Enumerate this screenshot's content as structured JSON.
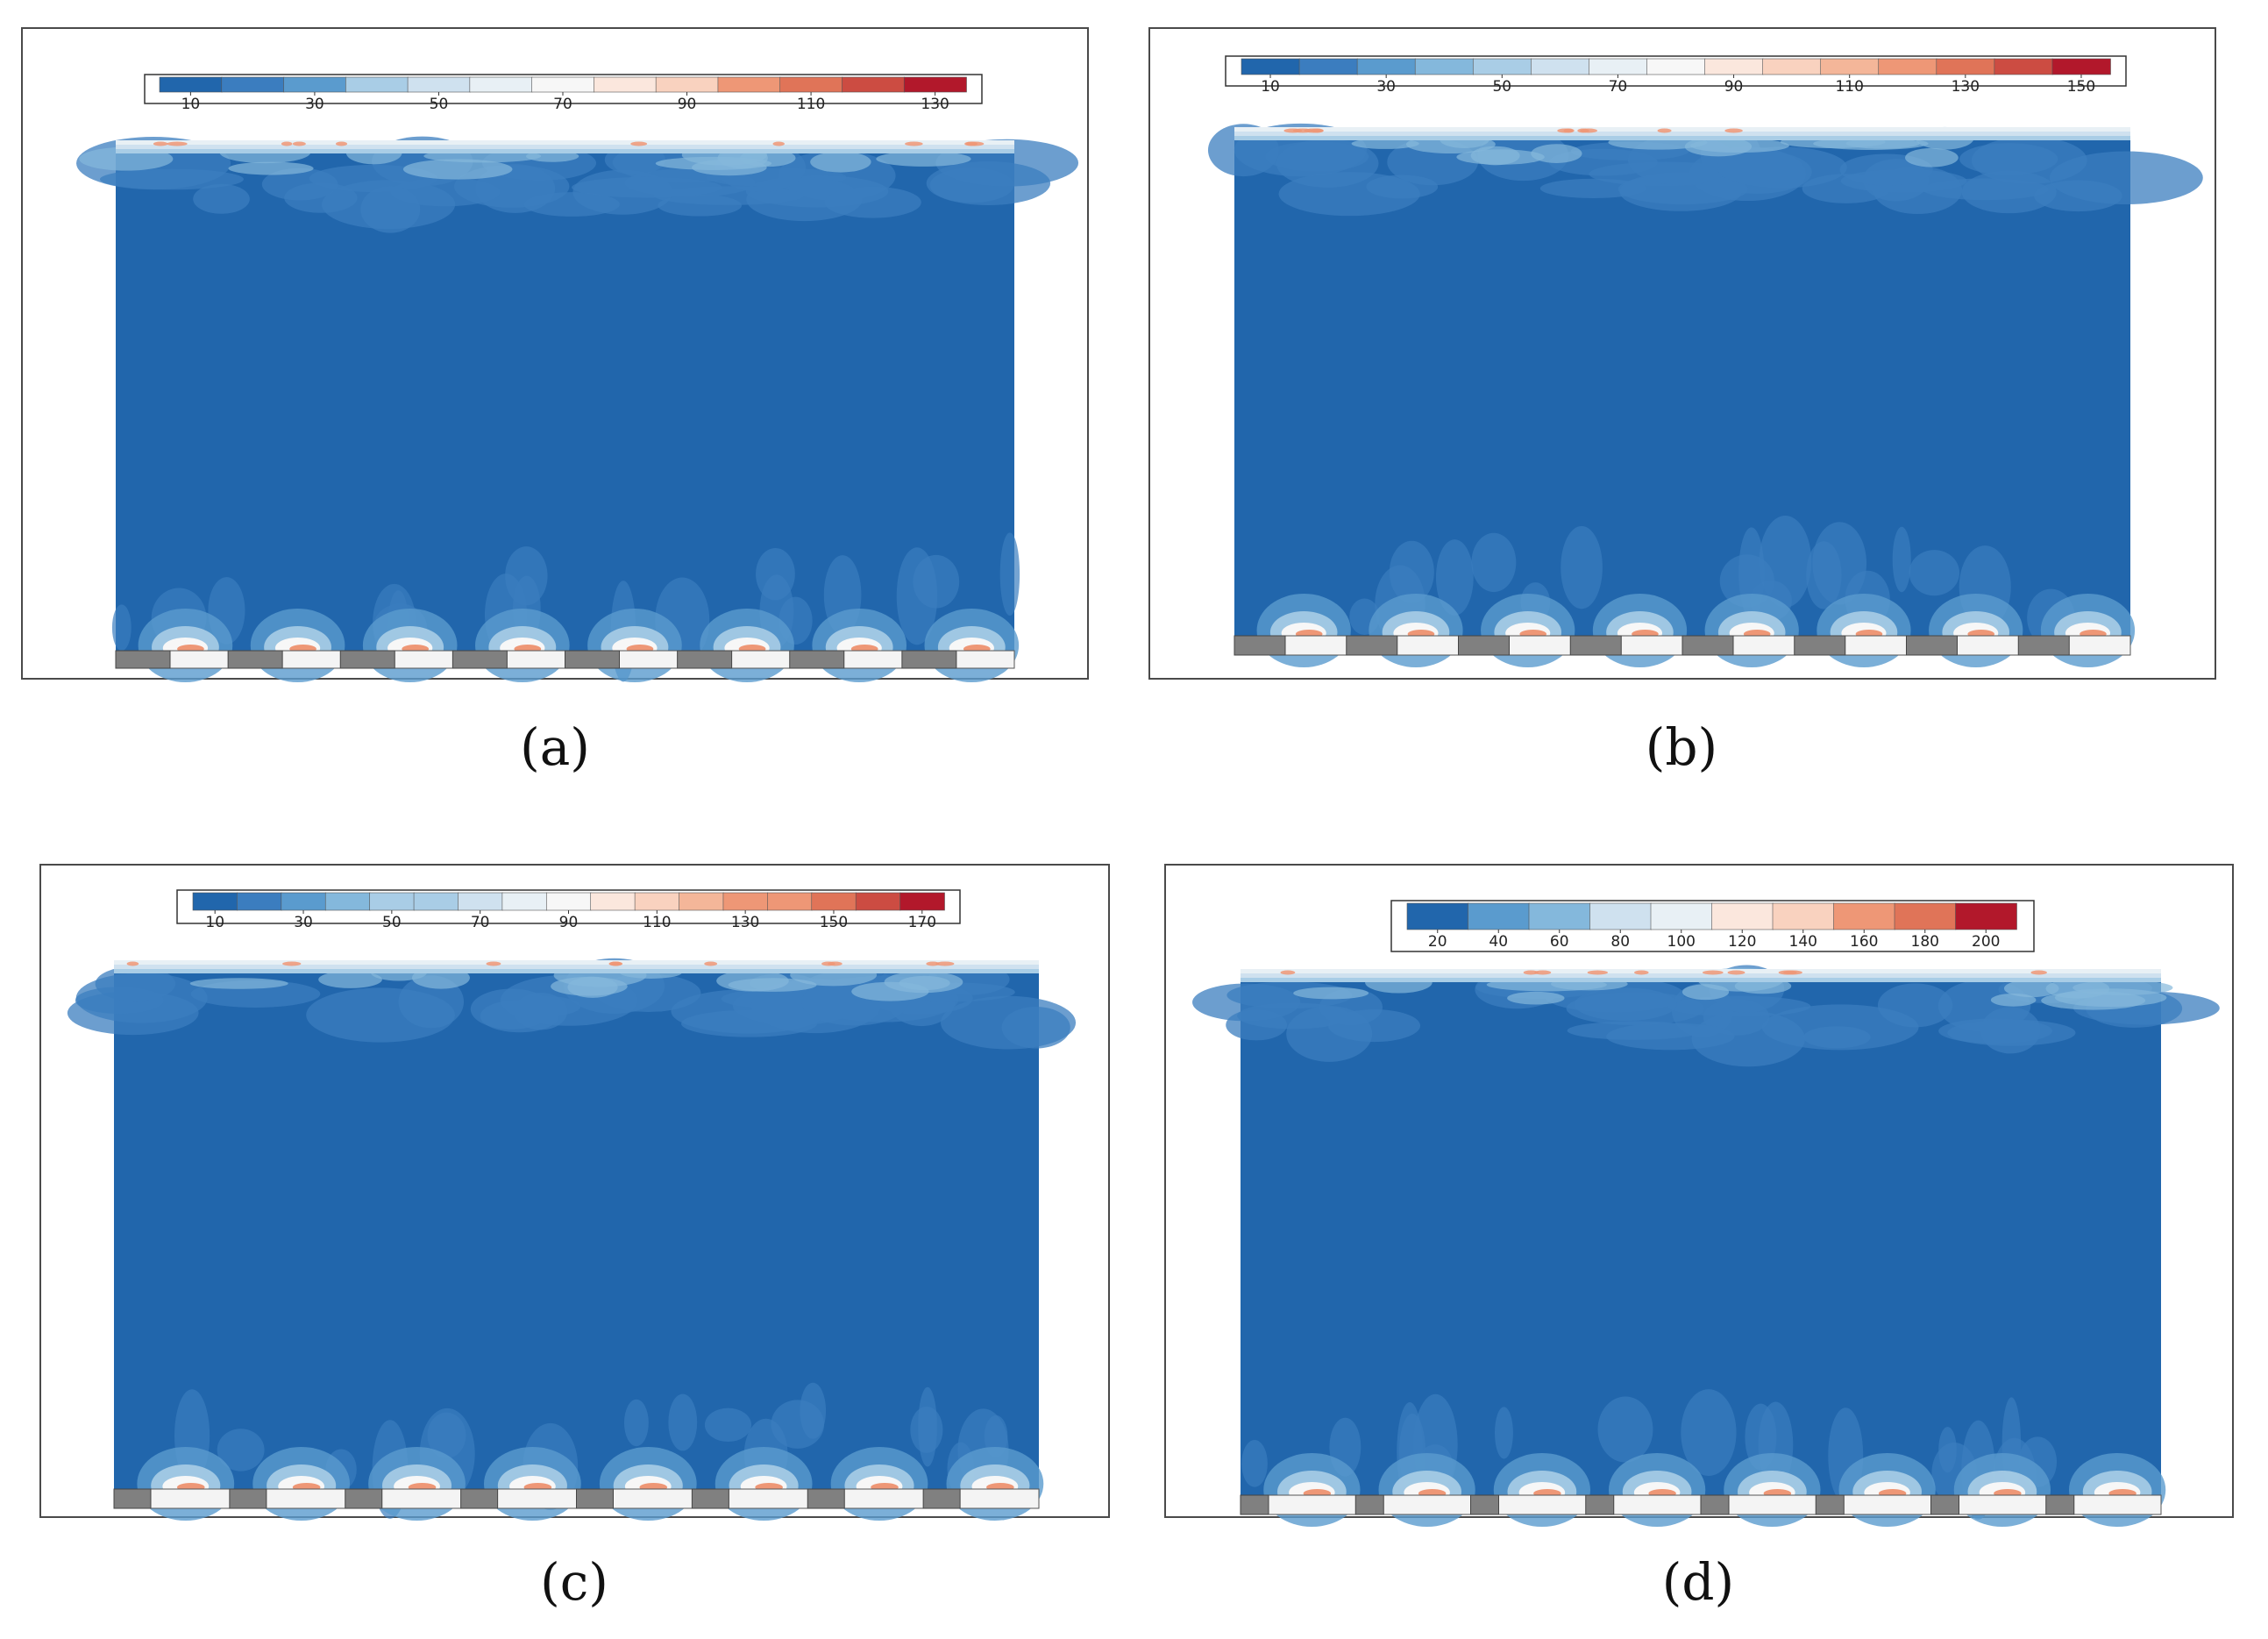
{
  "figure": {
    "palette": [
      "#2166ac",
      "#3b7dbf",
      "#5a9bce",
      "#84b8dc",
      "#a9cde6",
      "#cfe1ef",
      "#e8f0f5",
      "#f7f7f7",
      "#fbe7dd",
      "#f9d2bf",
      "#f4b699",
      "#ee9776",
      "#e07458",
      "#cc4c42",
      "#b2182b"
    ],
    "field_color": "#2166ac",
    "block_color": "#808080",
    "strip_color": "#f4f4f4"
  },
  "chart_data": [
    {
      "type": "heatmap",
      "panel_label": "(a)",
      "colorbar": {
        "ticks": [
          "10",
          "30",
          "50",
          "70",
          "90",
          "110",
          "130"
        ],
        "levels": 13,
        "range": [
          10,
          130
        ]
      },
      "obstacle_count": 8
    },
    {
      "type": "heatmap",
      "panel_label": "(b)",
      "colorbar": {
        "ticks": [
          "10",
          "30",
          "50",
          "70",
          "90",
          "110",
          "130",
          "150"
        ],
        "levels": 15,
        "range": [
          10,
          150
        ]
      },
      "obstacle_count": 8
    },
    {
      "type": "heatmap",
      "panel_label": "(c)",
      "colorbar": {
        "ticks": [
          "10",
          "30",
          "50",
          "70",
          "90",
          "110",
          "130",
          "150",
          "170"
        ],
        "levels": 17,
        "range": [
          10,
          170
        ]
      },
      "obstacle_count": 8
    },
    {
      "type": "heatmap",
      "panel_label": "(d)",
      "colorbar": {
        "ticks": [
          "20",
          "40",
          "60",
          "80",
          "100",
          "120",
          "140",
          "160",
          "180",
          "200"
        ],
        "levels": 10,
        "range": [
          20,
          200
        ]
      },
      "obstacle_count": 8
    }
  ]
}
